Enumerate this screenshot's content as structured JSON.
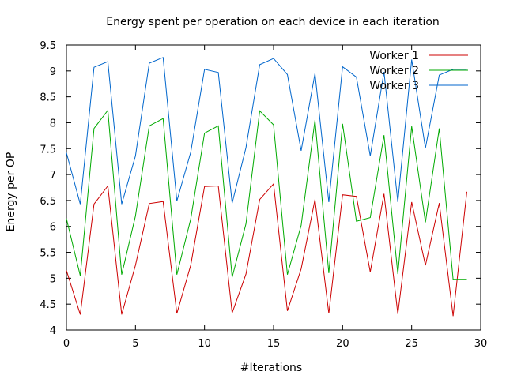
{
  "chart_data": {
    "type": "line",
    "title": "Energy spent per operation on each device in each iteration",
    "xlabel": "#Iterations",
    "ylabel": "Energy per OP",
    "xlim": [
      0,
      30
    ],
    "ylim": [
      4,
      9.5
    ],
    "xticks": [
      0,
      5,
      10,
      15,
      20,
      25,
      30
    ],
    "yticks": [
      4,
      4.5,
      5,
      5.5,
      6,
      6.5,
      7,
      7.5,
      8,
      8.5,
      9,
      9.5
    ],
    "grid": false,
    "legend_position": "top-right",
    "x": [
      0,
      1,
      2,
      3,
      4,
      5,
      6,
      7,
      8,
      9,
      10,
      11,
      12,
      13,
      14,
      15,
      16,
      17,
      18,
      19,
      20,
      21,
      22,
      23,
      24,
      25,
      26,
      27,
      28,
      29
    ],
    "series": [
      {
        "name": "Worker 1",
        "color": "#cc0000",
        "values": [
          5.15,
          4.3,
          6.43,
          6.78,
          4.3,
          5.25,
          6.44,
          6.48,
          4.32,
          5.25,
          6.77,
          6.78,
          4.33,
          5.08,
          6.52,
          6.82,
          4.37,
          5.18,
          6.52,
          4.32,
          6.61,
          6.58,
          5.12,
          6.63,
          4.31,
          6.47,
          5.25,
          6.45,
          4.27,
          6.67
        ]
      },
      {
        "name": "Worker 2",
        "color": "#00aa00",
        "values": [
          6.15,
          5.05,
          7.89,
          8.24,
          5.07,
          6.2,
          7.94,
          8.08,
          5.07,
          6.14,
          7.8,
          7.94,
          5.02,
          6.05,
          8.23,
          7.96,
          5.07,
          6.02,
          8.05,
          5.1,
          7.98,
          6.1,
          6.17,
          7.76,
          5.08,
          7.93,
          6.08,
          7.89,
          4.98,
          4.98
        ]
      },
      {
        "name": "Worker 3",
        "color": "#0066cc",
        "values": [
          7.42,
          6.43,
          9.07,
          9.18,
          6.43,
          7.36,
          9.15,
          9.26,
          6.49,
          7.43,
          9.03,
          8.97,
          6.45,
          7.52,
          9.12,
          9.24,
          8.93,
          7.46,
          8.95,
          6.47,
          9.08,
          8.88,
          7.36,
          8.98,
          6.47,
          9.22,
          7.51,
          8.92,
          9.03,
          9.03
        ]
      }
    ]
  }
}
